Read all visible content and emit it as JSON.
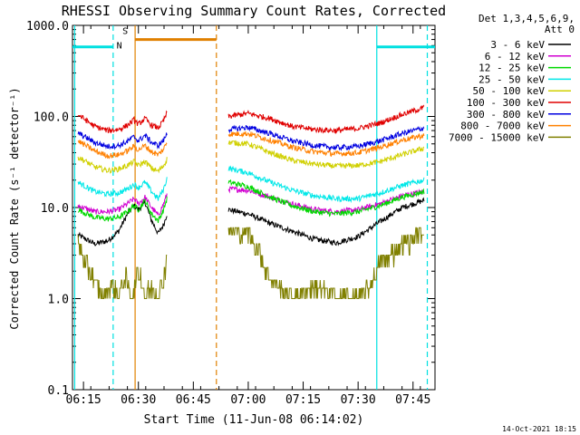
{
  "chart_data": {
    "type": "line",
    "title": "RHESSI Observing Summary Count Rates, Corrected",
    "xlabel": "Start Time (11-Jun-08 06:14:02)",
    "ylabel": "Corrected Count Rate (s⁻¹ detector⁻¹)",
    "yscale": "log",
    "xlim": [
      6.2,
      7.85
    ],
    "ylim": [
      0.1,
      1000
    ],
    "x_ticks": [
      {
        "v": 6.25,
        "label": "06:15"
      },
      {
        "v": 6.5,
        "label": "06:30"
      },
      {
        "v": 6.75,
        "label": "06:45"
      },
      {
        "v": 7.0,
        "label": "07:00"
      },
      {
        "v": 7.25,
        "label": "07:15"
      },
      {
        "v": 7.5,
        "label": "07:30"
      },
      {
        "v": 7.75,
        "label": "07:45"
      }
    ],
    "y_ticks": [
      {
        "v": 0.1,
        "label": "0.1"
      },
      {
        "v": 1,
        "label": "1.0"
      },
      {
        "v": 10,
        "label": "10.0"
      },
      {
        "v": 100,
        "label": "100.0"
      },
      {
        "v": 1000,
        "label": "1000.0"
      }
    ],
    "legend_title": [
      "Det 1,3,4,5,6,9,",
      "Att 0"
    ],
    "legend_position": "right",
    "series": [
      {
        "name": "3 - 6 keV",
        "color": "#000000",
        "seg1": [
          [
            6.225,
            5.0
          ],
          [
            6.3,
            4.0
          ],
          [
            6.36,
            4.3
          ],
          [
            6.41,
            5.5
          ],
          [
            6.45,
            8.5
          ],
          [
            6.48,
            10.5
          ],
          [
            6.5,
            9.5
          ],
          [
            6.53,
            11.5
          ],
          [
            6.56,
            7.2
          ],
          [
            6.59,
            5.2
          ],
          [
            6.615,
            6.5
          ],
          [
            6.63,
            8.5
          ]
        ],
        "seg2": [
          [
            6.91,
            9.5
          ],
          [
            7.0,
            8.5
          ],
          [
            7.1,
            6.7
          ],
          [
            7.2,
            5.5
          ],
          [
            7.3,
            4.5
          ],
          [
            7.4,
            4.1
          ],
          [
            7.5,
            4.8
          ],
          [
            7.6,
            7.0
          ],
          [
            7.7,
            10.0
          ],
          [
            7.8,
            12.0
          ]
        ]
      },
      {
        "name": "6 - 12 keV",
        "color": "#d100d1",
        "seg1": [
          [
            6.225,
            10.5
          ],
          [
            6.3,
            9.0
          ],
          [
            6.36,
            9.0
          ],
          [
            6.41,
            9.5
          ],
          [
            6.45,
            11.0
          ],
          [
            6.48,
            12.5
          ],
          [
            6.5,
            11.0
          ],
          [
            6.53,
            13.0
          ],
          [
            6.56,
            10.0
          ],
          [
            6.59,
            8.2
          ],
          [
            6.615,
            11.0
          ],
          [
            6.63,
            14.0
          ]
        ],
        "seg2": [
          [
            6.91,
            16.0
          ],
          [
            7.0,
            15.5
          ],
          [
            7.1,
            13.0
          ],
          [
            7.2,
            11.0
          ],
          [
            7.3,
            9.5
          ],
          [
            7.4,
            9.0
          ],
          [
            7.5,
            9.5
          ],
          [
            7.6,
            11.0
          ],
          [
            7.7,
            13.5
          ],
          [
            7.8,
            15.0
          ]
        ]
      },
      {
        "name": "12 - 25 keV",
        "color": "#00d800",
        "seg1": [
          [
            6.225,
            9.5
          ],
          [
            6.3,
            7.8
          ],
          [
            6.36,
            7.5
          ],
          [
            6.41,
            7.8
          ],
          [
            6.45,
            9.0
          ],
          [
            6.48,
            10.5
          ],
          [
            6.5,
            9.5
          ],
          [
            6.53,
            12.0
          ],
          [
            6.56,
            8.5
          ],
          [
            6.59,
            7.2
          ],
          [
            6.615,
            9.5
          ],
          [
            6.63,
            12.5
          ]
        ],
        "seg2": [
          [
            6.91,
            19.0
          ],
          [
            7.0,
            17.0
          ],
          [
            7.1,
            13.0
          ],
          [
            7.2,
            10.5
          ],
          [
            7.3,
            9.0
          ],
          [
            7.4,
            8.5
          ],
          [
            7.5,
            9.0
          ],
          [
            7.6,
            10.5
          ],
          [
            7.7,
            13.0
          ],
          [
            7.8,
            15.0
          ]
        ]
      },
      {
        "name": "25 - 50 keV",
        "color": "#00e8e8",
        "seg1": [
          [
            6.225,
            19.0
          ],
          [
            6.3,
            15.0
          ],
          [
            6.36,
            14.0
          ],
          [
            6.41,
            14.5
          ],
          [
            6.45,
            16.0
          ],
          [
            6.48,
            18.0
          ],
          [
            6.5,
            16.5
          ],
          [
            6.53,
            19.0
          ],
          [
            6.56,
            15.0
          ],
          [
            6.59,
            12.5
          ],
          [
            6.615,
            16.0
          ],
          [
            6.63,
            21.0
          ]
        ],
        "seg2": [
          [
            6.91,
            27.0
          ],
          [
            7.0,
            24.0
          ],
          [
            7.1,
            19.0
          ],
          [
            7.2,
            15.5
          ],
          [
            7.3,
            13.5
          ],
          [
            7.4,
            12.5
          ],
          [
            7.5,
            12.5
          ],
          [
            7.6,
            14.5
          ],
          [
            7.7,
            17.5
          ],
          [
            7.8,
            20.0
          ]
        ]
      },
      {
        "name": "50 - 100 keV",
        "color": "#d0d000",
        "seg1": [
          [
            6.225,
            36.0
          ],
          [
            6.3,
            28.0
          ],
          [
            6.36,
            25.5
          ],
          [
            6.41,
            26.5
          ],
          [
            6.45,
            29.0
          ],
          [
            6.48,
            32.0
          ],
          [
            6.5,
            29.0
          ],
          [
            6.53,
            32.0
          ],
          [
            6.56,
            27.0
          ],
          [
            6.59,
            25.0
          ],
          [
            6.615,
            29.0
          ],
          [
            6.63,
            34.0
          ]
        ],
        "seg2": [
          [
            6.91,
            52.0
          ],
          [
            7.0,
            50.0
          ],
          [
            7.1,
            40.0
          ],
          [
            7.2,
            33.0
          ],
          [
            7.3,
            30.0
          ],
          [
            7.4,
            28.5
          ],
          [
            7.5,
            29.0
          ],
          [
            7.6,
            32.0
          ],
          [
            7.7,
            38.0
          ],
          [
            7.8,
            45.0
          ]
        ]
      },
      {
        "name": "100 - 300 keV",
        "color": "#e00000",
        "seg1": [
          [
            6.225,
            105.0
          ],
          [
            6.3,
            78.0
          ],
          [
            6.36,
            70.0
          ],
          [
            6.41,
            72.0
          ],
          [
            6.45,
            80.0
          ],
          [
            6.48,
            92.0
          ],
          [
            6.5,
            82.0
          ],
          [
            6.53,
            95.0
          ],
          [
            6.56,
            80.0
          ],
          [
            6.59,
            75.0
          ],
          [
            6.615,
            90.0
          ],
          [
            6.63,
            110.0
          ]
        ],
        "seg2": [
          [
            6.91,
            100.0
          ],
          [
            7.0,
            108.0
          ],
          [
            7.1,
            95.0
          ],
          [
            7.2,
            78.0
          ],
          [
            7.3,
            72.0
          ],
          [
            7.4,
            70.0
          ],
          [
            7.5,
            74.0
          ],
          [
            7.6,
            85.0
          ],
          [
            7.7,
            105.0
          ],
          [
            7.8,
            125.0
          ]
        ]
      },
      {
        "name": "300 - 800 keV",
        "color": "#0000e0",
        "seg1": [
          [
            6.225,
            66.0
          ],
          [
            6.3,
            52.0
          ],
          [
            6.36,
            47.0
          ],
          [
            6.41,
            48.0
          ],
          [
            6.45,
            53.0
          ],
          [
            6.48,
            60.0
          ],
          [
            6.5,
            54.0
          ],
          [
            6.53,
            62.0
          ],
          [
            6.56,
            52.0
          ],
          [
            6.59,
            48.0
          ],
          [
            6.615,
            55.0
          ],
          [
            6.63,
            65.0
          ]
        ],
        "seg2": [
          [
            6.91,
            72.0
          ],
          [
            7.0,
            76.0
          ],
          [
            7.1,
            65.0
          ],
          [
            7.2,
            54.0
          ],
          [
            7.3,
            48.0
          ],
          [
            7.4,
            45.5
          ],
          [
            7.5,
            47.0
          ],
          [
            7.6,
            54.0
          ],
          [
            7.7,
            65.0
          ],
          [
            7.8,
            75.0
          ]
        ]
      },
      {
        "name": "800 - 7000 keV",
        "color": "#ff8000",
        "seg1": [
          [
            6.225,
            54.0
          ],
          [
            6.3,
            42.0
          ],
          [
            6.36,
            37.0
          ],
          [
            6.41,
            38.0
          ],
          [
            6.45,
            42.0
          ],
          [
            6.48,
            47.0
          ],
          [
            6.5,
            43.0
          ],
          [
            6.53,
            48.0
          ],
          [
            6.56,
            41.0
          ],
          [
            6.59,
            38.0
          ],
          [
            6.615,
            44.0
          ],
          [
            6.63,
            52.0
          ]
        ],
        "seg2": [
          [
            6.91,
            64.0
          ],
          [
            7.0,
            65.0
          ],
          [
            7.1,
            55.0
          ],
          [
            7.2,
            46.0
          ],
          [
            7.3,
            41.0
          ],
          [
            7.4,
            39.0
          ],
          [
            7.5,
            40.0
          ],
          [
            7.6,
            46.0
          ],
          [
            7.7,
            55.0
          ],
          [
            7.8,
            62.0
          ]
        ]
      },
      {
        "name": "7000 - 15000 keV",
        "color": "#808000",
        "seg1": [
          [
            6.225,
            4.0
          ],
          [
            6.26,
            2.2
          ],
          [
            6.3,
            1.6
          ],
          [
            6.34,
            1.0
          ],
          [
            6.38,
            1.4
          ],
          [
            6.41,
            1.0
          ],
          [
            6.44,
            1.6
          ],
          [
            6.47,
            1.0
          ],
          [
            6.5,
            2.0
          ],
          [
            6.53,
            1.0
          ],
          [
            6.56,
            1.3
          ],
          [
            6.59,
            1.0
          ],
          [
            6.615,
            1.6
          ],
          [
            6.63,
            3.0
          ]
        ],
        "seg2": [
          [
            6.91,
            5.5
          ],
          [
            7.0,
            5.0
          ],
          [
            7.05,
            3.2
          ],
          [
            7.1,
            1.6
          ],
          [
            7.15,
            1.2
          ],
          [
            7.2,
            1.0
          ],
          [
            7.3,
            1.3
          ],
          [
            7.4,
            1.0
          ],
          [
            7.5,
            1.0
          ],
          [
            7.55,
            1.3
          ],
          [
            7.6,
            2.2
          ],
          [
            7.7,
            3.8
          ],
          [
            7.8,
            5.0
          ]
        ]
      }
    ],
    "vertical_lines": [
      {
        "x": 6.21,
        "color": "#00e0e0",
        "style": "solid"
      },
      {
        "x": 6.385,
        "color": "#00e0e0",
        "style": "dashed"
      },
      {
        "x": 6.485,
        "color": "#e08000",
        "style": "solid"
      },
      {
        "x": 6.855,
        "color": "#e08000",
        "style": "dashed"
      },
      {
        "x": 7.585,
        "color": "#00e0e0",
        "style": "solid"
      },
      {
        "x": 7.815,
        "color": "#00e0e0",
        "style": "dashed"
      }
    ],
    "horizontal_bars": [
      {
        "x0": 6.2,
        "x1": 6.385,
        "y": 580,
        "color": "#00e0e0"
      },
      {
        "x0": 6.485,
        "x1": 6.855,
        "y": 700,
        "color": "#e08000"
      },
      {
        "x0": 7.585,
        "x1": 7.85,
        "y": 580,
        "color": "#00e0e0"
      }
    ],
    "annotations": [
      {
        "text": "S",
        "x": 6.44,
        "y": 800,
        "color": "#e08000"
      },
      {
        "text": "N",
        "x": 6.413,
        "y": 560,
        "color": "#00e0e0"
      }
    ],
    "footer": "14-Oct-2021 18:15"
  }
}
